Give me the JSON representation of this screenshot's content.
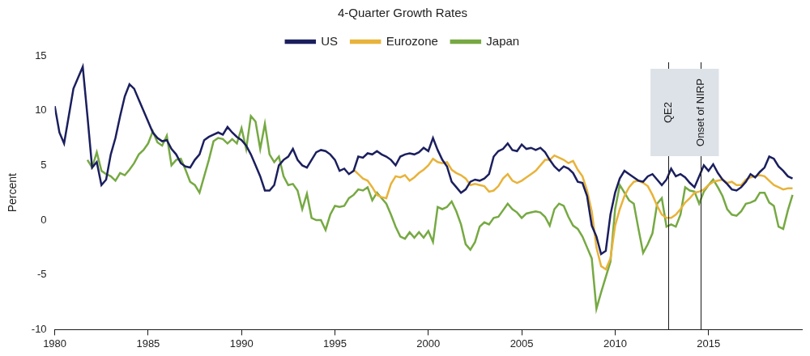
{
  "chart_data": {
    "type": "line",
    "title": "4-Quarter Growth Rates",
    "ylabel": "Percent",
    "x": [
      1980,
      1980.25,
      1980.5,
      1980.75,
      1981,
      1981.25,
      1981.5,
      1981.75,
      1982,
      1982.25,
      1982.5,
      1982.75,
      1983,
      1983.25,
      1983.5,
      1983.75,
      1984,
      1984.25,
      1984.5,
      1984.75,
      1985,
      1985.25,
      1985.5,
      1985.75,
      1986,
      1986.25,
      1986.5,
      1986.75,
      1987,
      1987.25,
      1987.5,
      1987.75,
      1988,
      1988.25,
      1988.5,
      1988.75,
      1989,
      1989.25,
      1989.5,
      1989.75,
      1990,
      1990.25,
      1990.5,
      1990.75,
      1991,
      1991.25,
      1991.5,
      1991.75,
      1992,
      1992.25,
      1992.5,
      1992.75,
      1993,
      1993.25,
      1993.5,
      1993.75,
      1994,
      1994.25,
      1994.5,
      1994.75,
      1995,
      1995.25,
      1995.5,
      1995.75,
      1996,
      1996.25,
      1996.5,
      1996.75,
      1997,
      1997.25,
      1997.5,
      1997.75,
      1998,
      1998.25,
      1998.5,
      1998.75,
      1999,
      1999.25,
      1999.5,
      1999.75,
      2000,
      2000.25,
      2000.5,
      2000.75,
      2001,
      2001.25,
      2001.5,
      2001.75,
      2002,
      2002.25,
      2002.5,
      2002.75,
      2003,
      2003.25,
      2003.5,
      2003.75,
      2004,
      2004.25,
      2004.5,
      2004.75,
      2005,
      2005.25,
      2005.5,
      2005.75,
      2006,
      2006.25,
      2006.5,
      2006.75,
      2007,
      2007.25,
      2007.5,
      2007.75,
      2008,
      2008.25,
      2008.5,
      2008.75,
      2009,
      2009.25,
      2009.5,
      2009.75,
      2010,
      2010.25,
      2010.5,
      2010.75,
      2011,
      2011.25,
      2011.5,
      2011.75,
      2012,
      2012.25,
      2012.5,
      2012.75,
      2013,
      2013.25,
      2013.5,
      2013.75,
      2014,
      2014.25,
      2014.5,
      2014.75,
      2015,
      2015.25,
      2015.5,
      2015.75,
      2016,
      2016.25,
      2016.5,
      2016.75,
      2017,
      2017.25,
      2017.5,
      2017.75,
      2018,
      2018.25,
      2018.5,
      2018.75,
      2019,
      2019.25,
      2019.5
    ],
    "series": [
      {
        "name": "US",
        "color": "#1b1f5e",
        "values": [
          10.4,
          8,
          7,
          9.5,
          12,
          13,
          14,
          9.5,
          4.8,
          5.3,
          3.2,
          3.7,
          6,
          7.5,
          9.5,
          11.3,
          12.4,
          12,
          11,
          10,
          9,
          8,
          7.5,
          7.2,
          7.3,
          6.5,
          6,
          5.2,
          4.9,
          4.8,
          5.5,
          6,
          7.3,
          7.6,
          7.8,
          8,
          7.8,
          8.5,
          8,
          7.6,
          7.3,
          6.8,
          6,
          5,
          4,
          2.7,
          2.7,
          3.2,
          5,
          5.5,
          5.8,
          6.5,
          5.5,
          5,
          4.8,
          5.5,
          6.2,
          6.4,
          6.3,
          6,
          5.5,
          4.5,
          4.7,
          4.2,
          4.5,
          5.8,
          5.7,
          6.1,
          6,
          6.3,
          6,
          5.8,
          5.5,
          5,
          5.8,
          6,
          6.1,
          6,
          6.2,
          6.6,
          6.3,
          7.5,
          6.4,
          5.5,
          4.9,
          3.5,
          3,
          2.5,
          2.8,
          3.5,
          3.7,
          3.6,
          3.8,
          4.2,
          5.8,
          6.3,
          6.5,
          7,
          6.4,
          6.3,
          6.9,
          6.5,
          6.6,
          6.4,
          6.6,
          6.2,
          5.5,
          4.9,
          4.5,
          4.9,
          4.7,
          4.3,
          3.5,
          3.4,
          2.2,
          -0.5,
          -1.5,
          -3.1,
          -2.8,
          0.5,
          2.5,
          3.8,
          4.5,
          4.2,
          3.9,
          3.6,
          3.5,
          4,
          4.2,
          3.7,
          3.2,
          3.7,
          4.7,
          4,
          4.2,
          3.9,
          3.4,
          3,
          4,
          5,
          4.5,
          5.1,
          4.3,
          3.7,
          3.3,
          2.8,
          2.7,
          3,
          3.5,
          4.2,
          3.9,
          4.4,
          4.8,
          5.8,
          5.6,
          4.9,
          4.5,
          4,
          3.8
        ]
      },
      {
        "name": "Eurozone",
        "color": "#e8b33a",
        "values": [
          null,
          null,
          null,
          null,
          null,
          null,
          null,
          null,
          null,
          null,
          null,
          null,
          null,
          null,
          null,
          null,
          null,
          null,
          null,
          null,
          null,
          null,
          null,
          null,
          null,
          null,
          null,
          null,
          null,
          null,
          null,
          null,
          null,
          null,
          null,
          null,
          null,
          null,
          null,
          null,
          null,
          null,
          null,
          null,
          null,
          null,
          null,
          null,
          null,
          null,
          null,
          null,
          null,
          null,
          null,
          null,
          null,
          null,
          null,
          null,
          null,
          null,
          null,
          null,
          4.6,
          4.2,
          3.8,
          3.6,
          3,
          2.3,
          2.1,
          2,
          3.3,
          4,
          3.9,
          4.1,
          3.6,
          3.9,
          4.3,
          4.6,
          5,
          5.6,
          5.3,
          5.2,
          5.3,
          4.6,
          4.3,
          4.1,
          3.8,
          3.2,
          3.3,
          3.2,
          3.1,
          2.6,
          2.7,
          3.1,
          3.8,
          4.2,
          3.6,
          3.4,
          3.6,
          3.9,
          4.2,
          4.5,
          5,
          5.5,
          5.5,
          5.9,
          5.7,
          5.5,
          5.2,
          5.4,
          4.6,
          4,
          2.7,
          0.8,
          -2.5,
          -4.2,
          -4.5,
          -3.5,
          -0.5,
          1,
          2.2,
          3,
          3.5,
          3.6,
          3.4,
          3.1,
          2.3,
          1.3,
          0.5,
          0.2,
          0.2,
          0.5,
          1,
          1.6,
          2,
          2.5,
          2.6,
          2.8,
          3.2,
          3.5,
          3.6,
          3.7,
          3.4,
          3.5,
          3.2,
          3.2,
          3.7,
          3.9,
          4,
          4.1,
          4,
          3.6,
          3.2,
          3,
          2.8,
          2.9,
          2.9
        ]
      },
      {
        "name": "Japan",
        "color": "#76a943",
        "values": [
          null,
          null,
          null,
          null,
          null,
          null,
          null,
          5.5,
          4.8,
          6.2,
          4.5,
          4.2,
          4,
          3.6,
          4.3,
          4.1,
          4.6,
          5.2,
          6,
          6.4,
          7,
          8.1,
          7.1,
          6.8,
          7.7,
          5,
          5.5,
          5.6,
          4.6,
          3.5,
          3.2,
          2.5,
          4,
          5.5,
          7.2,
          7.5,
          7.4,
          7,
          7.4,
          7,
          8.4,
          6.5,
          9.5,
          9,
          6.5,
          8.8,
          6,
          5.3,
          5.8,
          4,
          3.2,
          3.3,
          2.7,
          1,
          2.4,
          0.2,
          0,
          0,
          -0.9,
          0.5,
          1.3,
          1.2,
          1.3,
          2,
          2.3,
          2.8,
          2.7,
          3,
          1.8,
          2.5,
          2,
          1.5,
          0.5,
          -0.6,
          -1.5,
          -1.7,
          -1.1,
          -1.6,
          -1.1,
          -1.6,
          -1,
          -2,
          1.2,
          1,
          1.2,
          1.7,
          0.8,
          -0.4,
          -2.2,
          -2.7,
          -2,
          -0.6,
          -0.2,
          -0.4,
          0.2,
          0.3,
          0.9,
          1.5,
          1,
          0.7,
          0.2,
          0.6,
          0.7,
          0.8,
          0.7,
          0.3,
          -0.5,
          1,
          1.5,
          1.3,
          0.3,
          -0.5,
          -0.8,
          -1.5,
          -2.5,
          -3.5,
          -8.1,
          -6.6,
          -5.2,
          -3.8,
          1,
          3.2,
          2.5,
          1.8,
          1.5,
          -0.8,
          -3,
          -2.2,
          -1.2,
          1.5,
          2,
          -0.6,
          -0.4,
          -0.6,
          0.5,
          3,
          2.7,
          2.6,
          1.5,
          2.6,
          3.2,
          3.7,
          3,
          2.2,
          1,
          0.5,
          0.4,
          0.8,
          1.5,
          1.6,
          1.8,
          2.5,
          2.5,
          1.6,
          1.3,
          -0.6,
          -0.8,
          0.9,
          2.3
        ]
      }
    ],
    "xlim": [
      1980,
      2020
    ],
    "xticks": [
      1980,
      1985,
      1990,
      1995,
      2000,
      2005,
      2010,
      2015
    ],
    "ylim": [
      -10,
      15
    ],
    "yticks": [
      -10,
      -5,
      0,
      5,
      10,
      15
    ],
    "grid": false,
    "legend": "top",
    "annotations": [
      {
        "x": 2012.85,
        "label": "QE2"
      },
      {
        "x": 2014.6,
        "label": "Onset of NIRP"
      }
    ]
  }
}
